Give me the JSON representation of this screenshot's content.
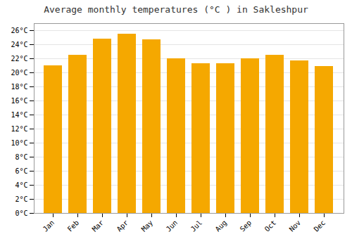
{
  "chart_data": {
    "type": "bar",
    "title": "Average monthly temperatures (°C ) in Sakleshpur",
    "categories": [
      "Jan",
      "Feb",
      "Mar",
      "Apr",
      "May",
      "Jun",
      "Jul",
      "Aug",
      "Sep",
      "Oct",
      "Nov",
      "Dec"
    ],
    "values": [
      21.0,
      22.5,
      24.8,
      25.5,
      24.7,
      22.0,
      21.3,
      21.3,
      22.0,
      22.5,
      21.7,
      20.9
    ],
    "color": "#F5A800",
    "ylim": [
      0,
      27
    ],
    "yticks": [
      {
        "value": 0,
        "label": "0°C"
      },
      {
        "value": 2,
        "label": "2°C"
      },
      {
        "value": 4,
        "label": "4°C"
      },
      {
        "value": 6,
        "label": "6°C"
      },
      {
        "value": 8,
        "label": "8°C"
      },
      {
        "value": 10,
        "label": "10°C"
      },
      {
        "value": 12,
        "label": "12°C"
      },
      {
        "value": 14,
        "label": "14°C"
      },
      {
        "value": 16,
        "label": "16°C"
      },
      {
        "value": 18,
        "label": "18°C"
      },
      {
        "value": 20,
        "label": "20°C"
      },
      {
        "value": 22,
        "label": "22°C"
      },
      {
        "value": 24,
        "label": "24°C"
      },
      {
        "value": 26,
        "label": "26°C"
      }
    ],
    "grid": true
  }
}
